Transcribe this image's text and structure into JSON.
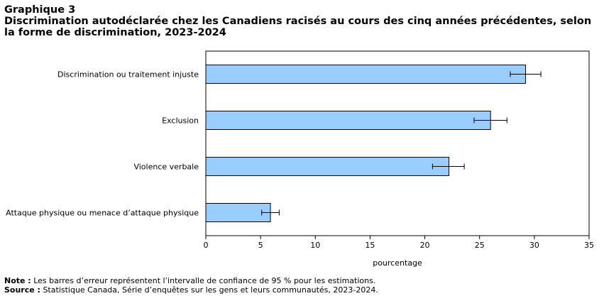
{
  "header": {
    "graph_label": "Graphique 3",
    "title_line1": "Discrimination  autodéclarée chez les Canadiens racisés au cours des cinq années précédentes, selon",
    "title_line2": "la forme de discrimination,  2023-2024"
  },
  "chart_data": {
    "type": "bar",
    "orientation": "horizontal",
    "title": "Discrimination  autodéclarée chez les Canadiens racisés au cours des cinq années précédentes, selon la forme de discrimination,  2023-2024",
    "categories": [
      "Discrimination ou traitement injuste",
      "Exclusion",
      "Violence verbale",
      "Attaque physique ou menace d’attaque physique"
    ],
    "values": [
      29.2,
      26.0,
      22.2,
      5.9
    ],
    "error_low": [
      27.8,
      24.5,
      20.7,
      5.1
    ],
    "error_high": [
      30.6,
      27.5,
      23.6,
      6.7
    ],
    "xlabel": "pourcentage",
    "ylabel": "",
    "xlim": [
      0,
      35
    ],
    "xticks": [
      "0",
      "5",
      "10",
      "15",
      "20",
      "25",
      "30",
      "35"
    ],
    "grid": false,
    "bar_color": "#99ccff",
    "bar_stroke": "#000000"
  },
  "notes": {
    "note_label": "Note :",
    "note_text": " Les barres d’erreur représentent l’intervalle de confiance de 95 % pour les estimations.",
    "source_label": "Source :",
    "source_text": " Statistique  Canada, Série d’enquêtes sur les gens et leurs communautés, 2023-2024."
  }
}
